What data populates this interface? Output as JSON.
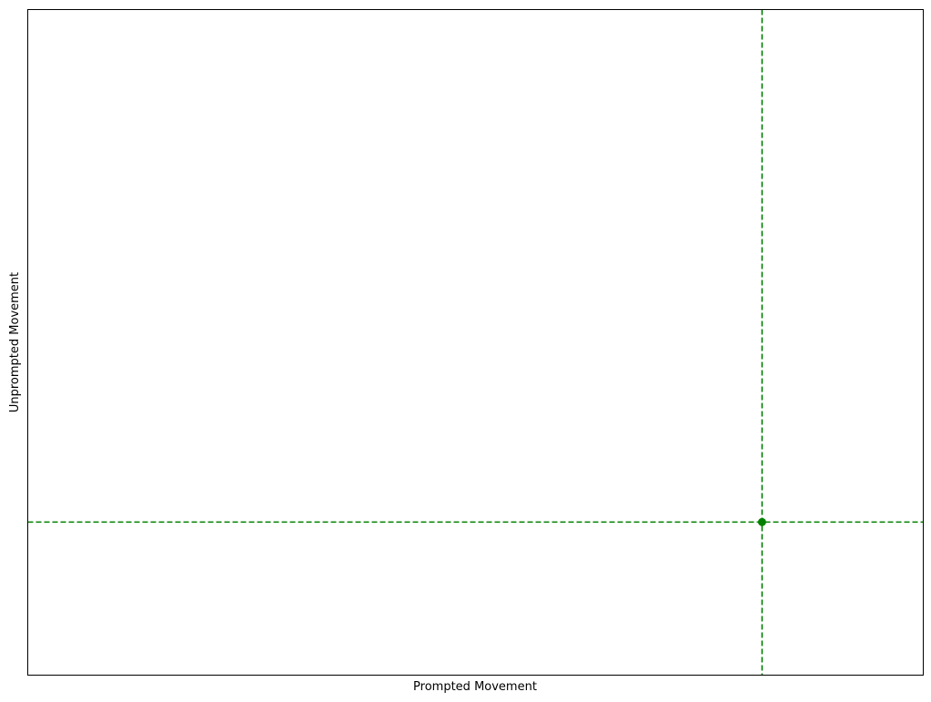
{
  "chart_data": {
    "type": "scatter",
    "title": "",
    "xlabel": "Prompted Movement",
    "ylabel": "Unprompted Movement",
    "xlim": [
      0,
      1
    ],
    "ylim": [
      0,
      1
    ],
    "xticks": [],
    "yticks": [],
    "grid": false,
    "points": [
      {
        "x": 0.82,
        "y": 0.23
      }
    ],
    "reference_lines": [
      {
        "orientation": "vertical",
        "x": 0.82,
        "style": "dashed"
      },
      {
        "orientation": "horizontal",
        "y": 0.23,
        "style": "dashed"
      }
    ],
    "colors": {
      "point": "#008000",
      "reference_line": "#008000",
      "frame": "#000000",
      "background": "#ffffff"
    }
  }
}
